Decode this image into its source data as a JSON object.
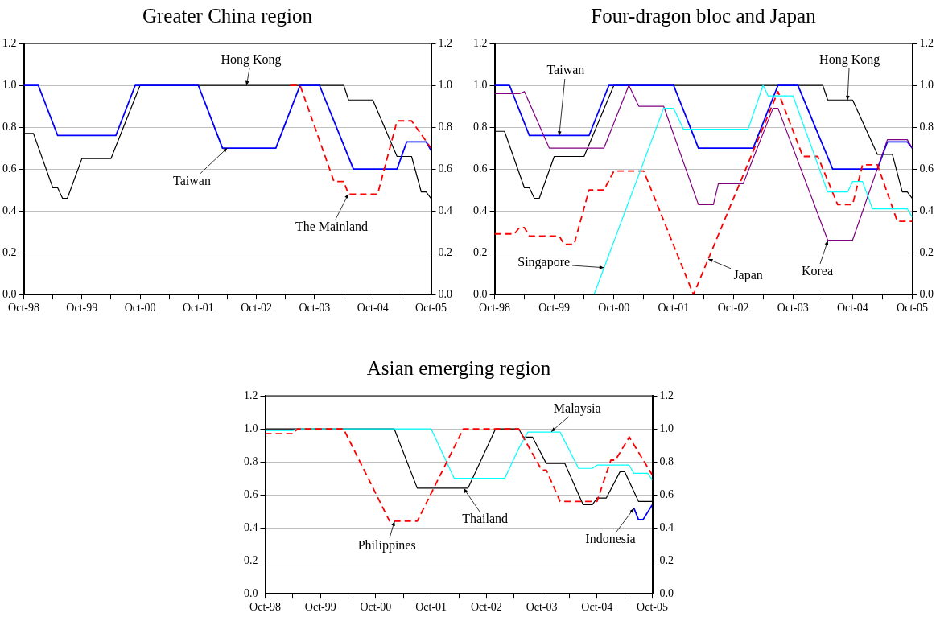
{
  "chart_data": [
    {
      "type": "line",
      "title": "Greater China region",
      "grid": "y",
      "marker": "none",
      "xlim": [
        "1998-10",
        "2005-10"
      ],
      "xticks": [
        {
          "value": "1998-10",
          "label": "Oct-98"
        },
        {
          "value": "1999-04",
          "label": null
        },
        {
          "value": "1999-10",
          "label": "Oct-99"
        },
        {
          "value": "2000-04",
          "label": null
        },
        {
          "value": "2000-10",
          "label": "Oct-00"
        },
        {
          "value": "2001-04",
          "label": null
        },
        {
          "value": "2001-10",
          "label": "Oct-01"
        },
        {
          "value": "2002-04",
          "label": null
        },
        {
          "value": "2002-10",
          "label": "Oct-02"
        },
        {
          "value": "2003-04",
          "label": null
        },
        {
          "value": "2003-10",
          "label": "Oct-03"
        },
        {
          "value": "2004-04",
          "label": null
        },
        {
          "value": "2004-10",
          "label": "Oct-04"
        },
        {
          "value": "2005-04",
          "label": null
        },
        {
          "value": "2005-10",
          "label": "Oct-05"
        }
      ],
      "ylim": [
        0,
        1.2
      ],
      "yticks": [
        {
          "value": 0,
          "label": "0.0"
        },
        {
          "value": 0.2,
          "label": "0.2"
        },
        {
          "value": 0.4,
          "label": "0.4"
        },
        {
          "value": 0.6,
          "label": "0.6"
        },
        {
          "value": 0.8,
          "label": "0.8"
        },
        {
          "value": 1,
          "label": "1.0"
        },
        {
          "value": 1.2,
          "label": "1.2"
        }
      ],
      "y2lim": [
        0,
        1.2
      ],
      "y2ticks": [
        {
          "value": 0,
          "label": "0.0"
        },
        {
          "value": 0.2,
          "label": "0.2"
        },
        {
          "value": 0.4,
          "label": "0.4"
        },
        {
          "value": 0.6,
          "label": "0.6"
        },
        {
          "value": 0.8,
          "label": "0.8"
        },
        {
          "value": 1,
          "label": "1.0"
        },
        {
          "value": 1.2,
          "label": "1.2"
        }
      ],
      "annotations": [
        {
          "text": "Hong Kong",
          "x": "2002-08",
          "y": 1.0
        },
        {
          "text": "Taiwan",
          "x": "2002-04",
          "y": 0.7
        },
        {
          "text": "The Mainland",
          "x": "2004-05",
          "y": 0.48
        }
      ],
      "series": [
        {
          "color": "#000000",
          "line_style": "solid",
          "x": [
            "1998-10",
            "1998-12",
            "1999-04",
            "1999-05",
            "1999-06",
            "1999-07",
            "1999-10",
            "2000-04",
            "2000-10",
            "2004-04",
            "2004-05",
            "2004-10",
            "2005-03",
            "2005-06",
            "2005-08",
            "2005-09",
            "2005-10"
          ],
          "values": [
            0.77,
            0.77,
            0.51,
            0.51,
            0.46,
            0.46,
            0.65,
            0.65,
            1.0,
            1.0,
            0.93,
            0.93,
            0.66,
            0.66,
            0.49,
            0.49,
            0.46
          ]
        },
        {
          "color": "#0000ff",
          "line_style": "solid",
          "x": [
            "1998-10",
            "1999-01",
            "1999-05",
            "2000-05",
            "2000-09",
            "2001-10",
            "2002-03",
            "2003-02",
            "2003-07",
            "2003-11",
            "2004-06",
            "2005-03",
            "2005-05",
            "2005-09",
            "2005-10"
          ],
          "values": [
            1.0,
            1.0,
            0.76,
            0.76,
            1.0,
            1.0,
            0.7,
            0.7,
            1.0,
            1.0,
            0.6,
            0.6,
            0.73,
            0.73,
            0.69
          ]
        },
        {
          "color": "#ff0000",
          "line_style": "dashed",
          "x": [
            "2003-05",
            "2003-07",
            "2004-02",
            "2004-04",
            "2004-05",
            "2004-11",
            "2005-03",
            "2005-06",
            "2005-10"
          ],
          "values": [
            1.0,
            1.0,
            0.54,
            0.54,
            0.48,
            0.48,
            0.83,
            0.83,
            0.7
          ]
        }
      ]
    },
    {
      "type": "line",
      "title": "Four-dragon bloc and Japan",
      "grid": "y",
      "marker": "none",
      "xlim": [
        "1998-10",
        "2005-10"
      ],
      "xticks": [
        {
          "value": "1998-10",
          "label": "Oct-98"
        },
        {
          "value": "1999-04",
          "label": null
        },
        {
          "value": "1999-10",
          "label": "Oct-99"
        },
        {
          "value": "2000-04",
          "label": null
        },
        {
          "value": "2000-10",
          "label": "Oct-00"
        },
        {
          "value": "2001-04",
          "label": null
        },
        {
          "value": "2001-10",
          "label": "Oct-01"
        },
        {
          "value": "2002-04",
          "label": null
        },
        {
          "value": "2002-10",
          "label": "Oct-02"
        },
        {
          "value": "2003-04",
          "label": null
        },
        {
          "value": "2003-10",
          "label": "Oct-03"
        },
        {
          "value": "2004-04",
          "label": null
        },
        {
          "value": "2004-10",
          "label": "Oct-04"
        },
        {
          "value": "2005-04",
          "label": null
        },
        {
          "value": "2005-10",
          "label": "Oct-05"
        }
      ],
      "ylim": [
        0,
        1.2
      ],
      "yticks": [
        {
          "value": 0,
          "label": "0.0"
        },
        {
          "value": 0.2,
          "label": "0.2"
        },
        {
          "value": 0.4,
          "label": "0.4"
        },
        {
          "value": 0.6,
          "label": "0.6"
        },
        {
          "value": 0.8,
          "label": "0.8"
        },
        {
          "value": 1,
          "label": "1.0"
        },
        {
          "value": 1.2,
          "label": "1.2"
        }
      ],
      "y2lim": [
        0,
        1.2
      ],
      "y2ticks": [
        {
          "value": 0,
          "label": "0.0"
        },
        {
          "value": 0.2,
          "label": "0.2"
        },
        {
          "value": 0.4,
          "label": "0.4"
        },
        {
          "value": 0.6,
          "label": "0.6"
        },
        {
          "value": 0.8,
          "label": "0.8"
        },
        {
          "value": 1,
          "label": "1.0"
        },
        {
          "value": 1.2,
          "label": "1.2"
        }
      ],
      "annotations": [
        {
          "text": "Hong Kong",
          "x": "2004-09",
          "y": 0.93
        },
        {
          "text": "Taiwan",
          "x": "1999-11",
          "y": 0.76
        },
        {
          "text": "Korea",
          "x": "2004-05",
          "y": 0.26
        },
        {
          "text": "Japan",
          "x": "2002-05",
          "y": 0.17
        },
        {
          "text": "Singapore",
          "x": "2000-08",
          "y": 0.13
        }
      ],
      "series": [
        {
          "color": "#000000",
          "line_style": "solid",
          "x": [
            "1998-10",
            "1998-12",
            "1999-04",
            "1999-05",
            "1999-06",
            "1999-07",
            "1999-10",
            "2000-04",
            "2000-10",
            "2004-04",
            "2004-05",
            "2004-10",
            "2005-03",
            "2005-06",
            "2005-08",
            "2005-09",
            "2005-10"
          ],
          "values": [
            0.78,
            0.78,
            0.51,
            0.51,
            0.46,
            0.46,
            0.66,
            0.66,
            1.0,
            1.0,
            0.93,
            0.93,
            0.67,
            0.67,
            0.49,
            0.49,
            0.46
          ]
        },
        {
          "color": "#0000ff",
          "line_style": "solid",
          "x": [
            "1998-10",
            "1999-01",
            "1999-05",
            "2000-05",
            "2000-09",
            "2001-10",
            "2002-03",
            "2003-02",
            "2003-07",
            "2003-11",
            "2004-06",
            "2005-03",
            "2005-05",
            "2005-09",
            "2005-10"
          ],
          "values": [
            1.0,
            1.0,
            0.76,
            0.76,
            1.0,
            1.0,
            0.7,
            0.7,
            1.0,
            1.0,
            0.6,
            0.6,
            0.73,
            0.73,
            0.7
          ]
        },
        {
          "color": "#800080",
          "line_style": "solid",
          "x": [
            "1998-10",
            "1999-03",
            "1999-04",
            "1999-09",
            "2000-08",
            "2001-01",
            "2001-03",
            "2001-08",
            "2002-03",
            "2002-06",
            "2002-07",
            "2002-12",
            "2003-06",
            "2003-07",
            "2004-05",
            "2004-10",
            "2005-05",
            "2005-09",
            "2005-10"
          ],
          "values": [
            0.96,
            0.96,
            0.97,
            0.7,
            0.7,
            1.0,
            0.9,
            0.9,
            0.43,
            0.43,
            0.53,
            0.53,
            0.89,
            0.89,
            0.26,
            0.26,
            0.74,
            0.74,
            0.7
          ]
        },
        {
          "color": "#ff0000",
          "line_style": "dashed",
          "x": [
            "1998-10",
            "1999-02",
            "1999-03",
            "1999-04",
            "1999-05",
            "1999-11",
            "1999-12",
            "2000-02",
            "2000-05",
            "2000-08",
            "2000-10",
            "2001-04",
            "2002-02",
            "2003-07",
            "2003-12",
            "2004-03",
            "2004-07",
            "2004-10",
            "2004-12",
            "2005-03",
            "2005-07",
            "2005-10"
          ],
          "values": [
            0.29,
            0.29,
            0.32,
            0.32,
            0.28,
            0.28,
            0.24,
            0.24,
            0.5,
            0.5,
            0.59,
            0.59,
            0.0,
            0.97,
            0.66,
            0.66,
            0.43,
            0.43,
            0.62,
            0.62,
            0.35,
            0.35
          ]
        },
        {
          "color": "#00ffff",
          "line_style": "solid",
          "x": [
            "2000-06",
            "2001-08",
            "2001-10",
            "2001-12",
            "2003-01",
            "2003-04",
            "2003-05",
            "2003-10",
            "2004-05",
            "2004-09",
            "2004-10",
            "2004-12",
            "2005-02",
            "2005-09",
            "2005-10"
          ],
          "values": [
            0.0,
            0.89,
            0.89,
            0.79,
            0.79,
            1.0,
            0.95,
            0.95,
            0.49,
            0.49,
            0.54,
            0.54,
            0.41,
            0.41,
            0.37
          ]
        }
      ]
    },
    {
      "type": "line",
      "title": "Asian emerging region",
      "grid": "y",
      "marker": "none",
      "xlim": [
        "1998-10",
        "2005-10"
      ],
      "xticks": [
        {
          "value": "1998-10",
          "label": "Oct-98"
        },
        {
          "value": "1999-04",
          "label": null
        },
        {
          "value": "1999-10",
          "label": "Oct-99"
        },
        {
          "value": "2000-04",
          "label": null
        },
        {
          "value": "2000-10",
          "label": "Oct-00"
        },
        {
          "value": "2001-04",
          "label": null
        },
        {
          "value": "2001-10",
          "label": "Oct-01"
        },
        {
          "value": "2002-04",
          "label": null
        },
        {
          "value": "2002-10",
          "label": "Oct-02"
        },
        {
          "value": "2003-04",
          "label": null
        },
        {
          "value": "2003-10",
          "label": "Oct-03"
        },
        {
          "value": "2004-04",
          "label": null
        },
        {
          "value": "2004-10",
          "label": "Oct-04"
        },
        {
          "value": "2005-04",
          "label": null
        },
        {
          "value": "2005-10",
          "label": "Oct-05"
        }
      ],
      "ylim": [
        0,
        1.2
      ],
      "yticks": [
        {
          "value": 0,
          "label": "0.0"
        },
        {
          "value": 0.2,
          "label": "0.2"
        },
        {
          "value": 0.4,
          "label": "0.4"
        },
        {
          "value": 0.6,
          "label": "0.6"
        },
        {
          "value": 0.8,
          "label": "0.8"
        },
        {
          "value": 1,
          "label": "1.0"
        },
        {
          "value": 1.2,
          "label": "1.2"
        }
      ],
      "y2lim": [
        0,
        1.2
      ],
      "y2ticks": [
        {
          "value": 0,
          "label": "0.0"
        },
        {
          "value": 0.2,
          "label": "0.2"
        },
        {
          "value": 0.4,
          "label": "0.4"
        },
        {
          "value": 0.6,
          "label": "0.6"
        },
        {
          "value": 0.8,
          "label": "0.8"
        },
        {
          "value": 1,
          "label": "1.0"
        },
        {
          "value": 1.2,
          "label": "1.2"
        }
      ],
      "annotations": [
        {
          "text": "Thailand",
          "x": "2002-05",
          "y": 0.64
        },
        {
          "text": "Malaysia",
          "x": "2003-12",
          "y": 0.98
        },
        {
          "text": "Philippines",
          "x": "2001-02",
          "y": 0.44
        },
        {
          "text": "Indonesia",
          "x": "2005-06",
          "y": 0.52
        }
      ],
      "series": [
        {
          "color": "#000000",
          "line_style": "solid",
          "x": [
            "1998-10",
            "2001-02",
            "2001-07",
            "2002-06",
            "2002-12",
            "2003-05",
            "2003-06",
            "2003-08",
            "2003-11",
            "2004-03",
            "2004-07",
            "2004-09",
            "2004-10",
            "2004-12",
            "2005-03",
            "2005-04",
            "2005-07",
            "2005-10"
          ],
          "values": [
            1.0,
            1.0,
            0.64,
            0.64,
            1.0,
            1.0,
            0.95,
            0.95,
            0.79,
            0.79,
            0.54,
            0.54,
            0.58,
            0.58,
            0.74,
            0.74,
            0.56,
            0.56
          ]
        },
        {
          "color": "#00ffff",
          "line_style": "solid",
          "x": [
            "1998-10",
            "1999-04",
            "1999-05",
            "2001-10",
            "2002-03",
            "2003-02",
            "2003-05",
            "2003-07",
            "2004-02",
            "2004-06",
            "2004-09",
            "2004-10",
            "2005-05",
            "2005-06",
            "2005-09",
            "2005-10"
          ],
          "values": [
            0.99,
            0.99,
            1.0,
            1.0,
            0.7,
            0.7,
            0.88,
            0.98,
            0.98,
            0.76,
            0.76,
            0.78,
            0.78,
            0.73,
            0.73,
            0.69
          ]
        },
        {
          "color": "#ff0000",
          "line_style": "dashed",
          "x": [
            "1998-10",
            "1999-04",
            "1999-05",
            "2000-03",
            "2001-01",
            "2001-07",
            "2002-05",
            "2003-05",
            "2003-10",
            "2003-11",
            "2004-02",
            "2004-10",
            "2005-01",
            "2005-02",
            "2005-05",
            "2005-10"
          ],
          "values": [
            0.97,
            0.97,
            1.0,
            1.0,
            0.44,
            0.44,
            1.0,
            1.0,
            0.75,
            0.75,
            0.56,
            0.56,
            0.81,
            0.81,
            0.95,
            0.72
          ]
        },
        {
          "color": "#0000ff",
          "line_style": "solid",
          "x": [
            "2005-06",
            "2005-07",
            "2005-08",
            "2005-10"
          ],
          "values": [
            0.52,
            0.45,
            0.45,
            0.54
          ]
        }
      ]
    }
  ]
}
